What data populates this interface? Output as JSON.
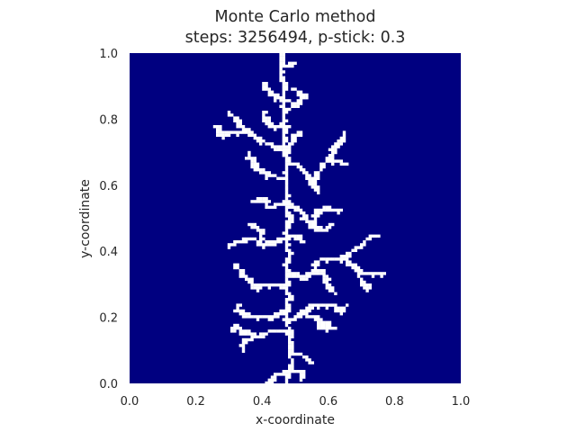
{
  "chart_data": {
    "type": "heatmap",
    "title": "Monte Carlo method",
    "subtitle": "steps: 3256494, p-stick: 0.3",
    "xlabel": "x-coordinate",
    "ylabel": "y-coordinate",
    "xlim": [
      0,
      1
    ],
    "ylim": [
      0,
      1
    ],
    "xticks": [
      "0.0",
      "0.2",
      "0.4",
      "0.6",
      "0.8",
      "1.0"
    ],
    "yticks": [
      "0.0",
      "0.2",
      "0.4",
      "0.6",
      "0.8",
      "1.0"
    ],
    "grid": false,
    "background_color": "#000080",
    "cluster_color": "#ffffff",
    "cluster_segments": [
      [
        [
          0.47,
          0.0
        ],
        [
          0.47,
          0.03
        ],
        [
          0.49,
          0.06
        ],
        [
          0.48,
          0.1
        ],
        [
          0.48,
          0.16
        ],
        [
          0.47,
          0.22
        ],
        [
          0.48,
          0.26
        ],
        [
          0.47,
          0.3
        ],
        [
          0.47,
          0.34
        ],
        [
          0.48,
          0.39
        ],
        [
          0.47,
          0.44
        ],
        [
          0.48,
          0.5
        ],
        [
          0.47,
          0.55
        ],
        [
          0.47,
          0.62
        ],
        [
          0.47,
          0.7
        ],
        [
          0.46,
          0.78
        ],
        [
          0.47,
          0.86
        ],
        [
          0.46,
          0.92
        ],
        [
          0.46,
          1.0
        ]
      ],
      [
        [
          0.41,
          0.0
        ],
        [
          0.45,
          0.03
        ],
        [
          0.47,
          0.03
        ],
        [
          0.52,
          0.04
        ],
        [
          0.52,
          0.02
        ]
      ],
      [
        [
          0.48,
          0.1
        ],
        [
          0.53,
          0.08
        ],
        [
          0.55,
          0.06
        ]
      ],
      [
        [
          0.48,
          0.16
        ],
        [
          0.43,
          0.16
        ],
        [
          0.38,
          0.14
        ],
        [
          0.34,
          0.13
        ],
        [
          0.34,
          0.1
        ]
      ],
      [
        [
          0.38,
          0.14
        ],
        [
          0.34,
          0.16
        ],
        [
          0.32,
          0.18
        ],
        [
          0.31,
          0.16
        ]
      ],
      [
        [
          0.47,
          0.22
        ],
        [
          0.42,
          0.2
        ],
        [
          0.37,
          0.2
        ],
        [
          0.33,
          0.22
        ],
        [
          0.33,
          0.24
        ]
      ],
      [
        [
          0.48,
          0.19
        ],
        [
          0.52,
          0.21
        ],
        [
          0.56,
          0.2
        ],
        [
          0.6,
          0.18
        ]
      ],
      [
        [
          0.52,
          0.21
        ],
        [
          0.55,
          0.24
        ],
        [
          0.6,
          0.24
        ],
        [
          0.64,
          0.22
        ],
        [
          0.66,
          0.24
        ]
      ],
      [
        [
          0.56,
          0.2
        ],
        [
          0.58,
          0.17
        ],
        [
          0.62,
          0.17
        ]
      ],
      [
        [
          0.47,
          0.3
        ],
        [
          0.42,
          0.3
        ],
        [
          0.38,
          0.29
        ],
        [
          0.36,
          0.31
        ],
        [
          0.34,
          0.33
        ],
        [
          0.32,
          0.36
        ]
      ],
      [
        [
          0.47,
          0.34
        ],
        [
          0.52,
          0.32
        ],
        [
          0.55,
          0.33
        ],
        [
          0.58,
          0.34
        ],
        [
          0.6,
          0.3
        ],
        [
          0.62,
          0.27
        ]
      ],
      [
        [
          0.55,
          0.33
        ],
        [
          0.57,
          0.37
        ],
        [
          0.6,
          0.38
        ],
        [
          0.64,
          0.38
        ],
        [
          0.68,
          0.35
        ],
        [
          0.72,
          0.33
        ],
        [
          0.76,
          0.33
        ]
      ],
      [
        [
          0.64,
          0.38
        ],
        [
          0.67,
          0.4
        ],
        [
          0.7,
          0.42
        ],
        [
          0.72,
          0.44
        ],
        [
          0.74,
          0.45
        ]
      ],
      [
        [
          0.68,
          0.35
        ],
        [
          0.7,
          0.31
        ],
        [
          0.72,
          0.29
        ]
      ],
      [
        [
          0.47,
          0.44
        ],
        [
          0.43,
          0.43
        ],
        [
          0.4,
          0.42
        ],
        [
          0.37,
          0.44
        ],
        [
          0.33,
          0.43
        ],
        [
          0.3,
          0.42
        ]
      ],
      [
        [
          0.4,
          0.42
        ],
        [
          0.39,
          0.47
        ],
        [
          0.36,
          0.48
        ]
      ],
      [
        [
          0.47,
          0.44
        ],
        [
          0.5,
          0.45
        ],
        [
          0.52,
          0.43
        ]
      ],
      [
        [
          0.47,
          0.55
        ],
        [
          0.42,
          0.53
        ],
        [
          0.4,
          0.56
        ],
        [
          0.37,
          0.55
        ]
      ],
      [
        [
          0.47,
          0.55
        ],
        [
          0.51,
          0.53
        ],
        [
          0.53,
          0.5
        ],
        [
          0.55,
          0.48
        ],
        [
          0.58,
          0.46
        ],
        [
          0.61,
          0.48
        ]
      ],
      [
        [
          0.55,
          0.48
        ],
        [
          0.57,
          0.52
        ],
        [
          0.6,
          0.53
        ],
        [
          0.63,
          0.52
        ]
      ],
      [
        [
          0.47,
          0.62
        ],
        [
          0.42,
          0.63
        ],
        [
          0.39,
          0.65
        ],
        [
          0.37,
          0.67
        ],
        [
          0.36,
          0.7
        ]
      ],
      [
        [
          0.47,
          0.66
        ],
        [
          0.51,
          0.66
        ],
        [
          0.53,
          0.64
        ],
        [
          0.55,
          0.6
        ],
        [
          0.57,
          0.58
        ]
      ],
      [
        [
          0.55,
          0.6
        ],
        [
          0.57,
          0.63
        ],
        [
          0.58,
          0.66
        ],
        [
          0.6,
          0.68
        ],
        [
          0.62,
          0.72
        ],
        [
          0.64,
          0.74
        ],
        [
          0.65,
          0.76
        ]
      ],
      [
        [
          0.6,
          0.68
        ],
        [
          0.64,
          0.67
        ],
        [
          0.66,
          0.66
        ]
      ],
      [
        [
          0.47,
          0.7
        ],
        [
          0.43,
          0.72
        ],
        [
          0.39,
          0.74
        ],
        [
          0.36,
          0.76
        ],
        [
          0.34,
          0.77
        ],
        [
          0.32,
          0.8
        ],
        [
          0.3,
          0.82
        ]
      ],
      [
        [
          0.36,
          0.76
        ],
        [
          0.3,
          0.76
        ],
        [
          0.27,
          0.75
        ],
        [
          0.26,
          0.78
        ]
      ],
      [
        [
          0.47,
          0.7
        ],
        [
          0.49,
          0.73
        ],
        [
          0.51,
          0.76
        ]
      ],
      [
        [
          0.47,
          0.78
        ],
        [
          0.42,
          0.78
        ],
        [
          0.4,
          0.82
        ]
      ],
      [
        [
          0.46,
          0.86
        ],
        [
          0.42,
          0.88
        ],
        [
          0.4,
          0.91
        ]
      ],
      [
        [
          0.47,
          0.82
        ],
        [
          0.51,
          0.85
        ],
        [
          0.53,
          0.87
        ],
        [
          0.5,
          0.89
        ]
      ],
      [
        [
          0.47,
          0.96
        ],
        [
          0.49,
          0.97
        ]
      ]
    ]
  }
}
